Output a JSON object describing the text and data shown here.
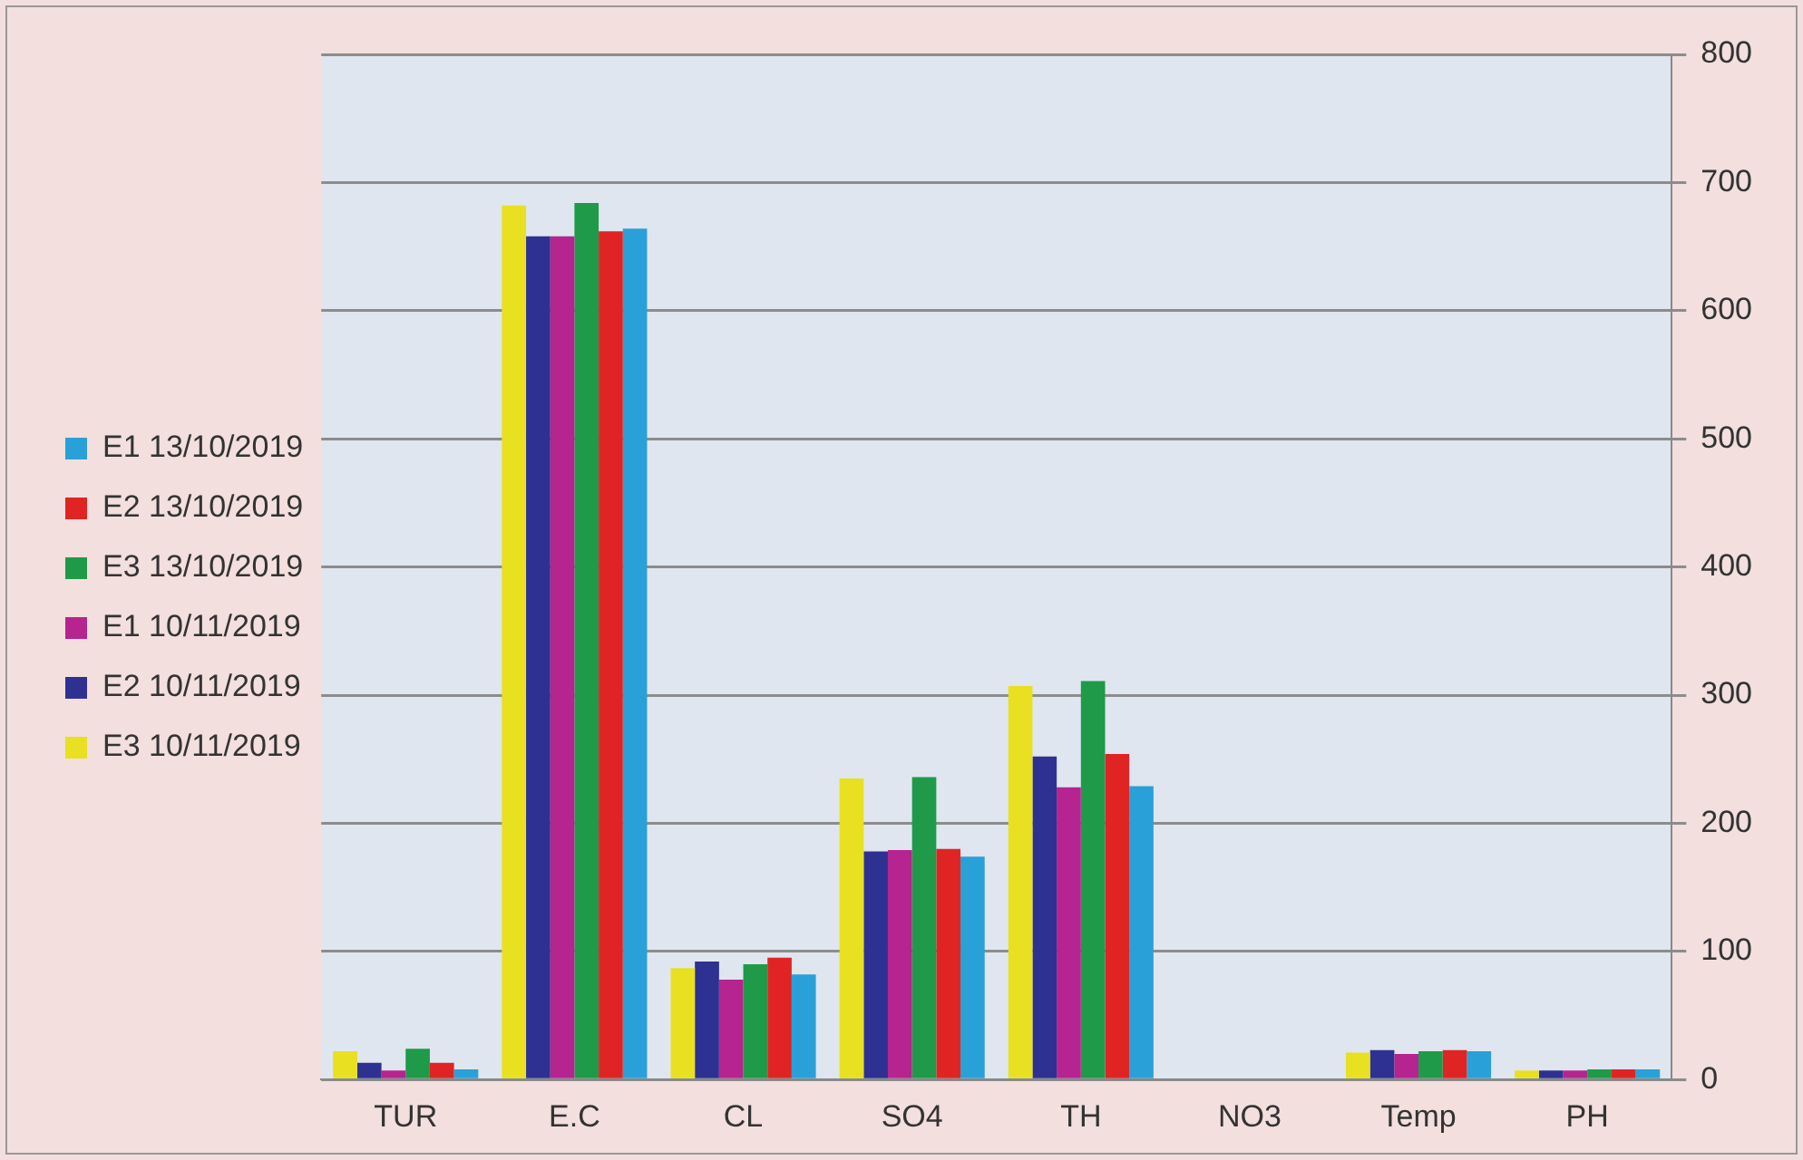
{
  "chart_data": {
    "type": "bar",
    "categories": [
      "TUR",
      "E.C",
      "CL",
      "SO4",
      "TH",
      "NO3",
      "Temp",
      "PH"
    ],
    "series": [
      {
        "name": "E3 10/11/2019",
        "color": "#e8e020",
        "values": [
          22,
          682,
          87,
          235,
          307,
          0,
          21,
          7
        ]
      },
      {
        "name": "E2 10/11/2019",
        "color": "#2e3192",
        "values": [
          13,
          658,
          92,
          178,
          252,
          0,
          23,
          7
        ]
      },
      {
        "name": "E1 10/11/2019",
        "color": "#b5248f",
        "values": [
          7,
          658,
          78,
          179,
          228,
          0,
          20,
          7
        ]
      },
      {
        "name": "E3 13/10/2019",
        "color": "#1f9a48",
        "values": [
          24,
          684,
          90,
          236,
          311,
          0,
          22,
          8
        ]
      },
      {
        "name": "E2 13/10/2019",
        "color": "#e02424",
        "values": [
          13,
          662,
          95,
          180,
          254,
          0,
          23,
          8
        ]
      },
      {
        "name": "E1 13/10/2019",
        "color": "#2aa0d8",
        "values": [
          8,
          664,
          82,
          174,
          229,
          0,
          22,
          8
        ]
      }
    ],
    "ylim": [
      0,
      800
    ],
    "yticks": [
      0,
      100,
      200,
      300,
      400,
      500,
      600,
      700,
      800
    ],
    "grid": "y",
    "legend": "left"
  }
}
